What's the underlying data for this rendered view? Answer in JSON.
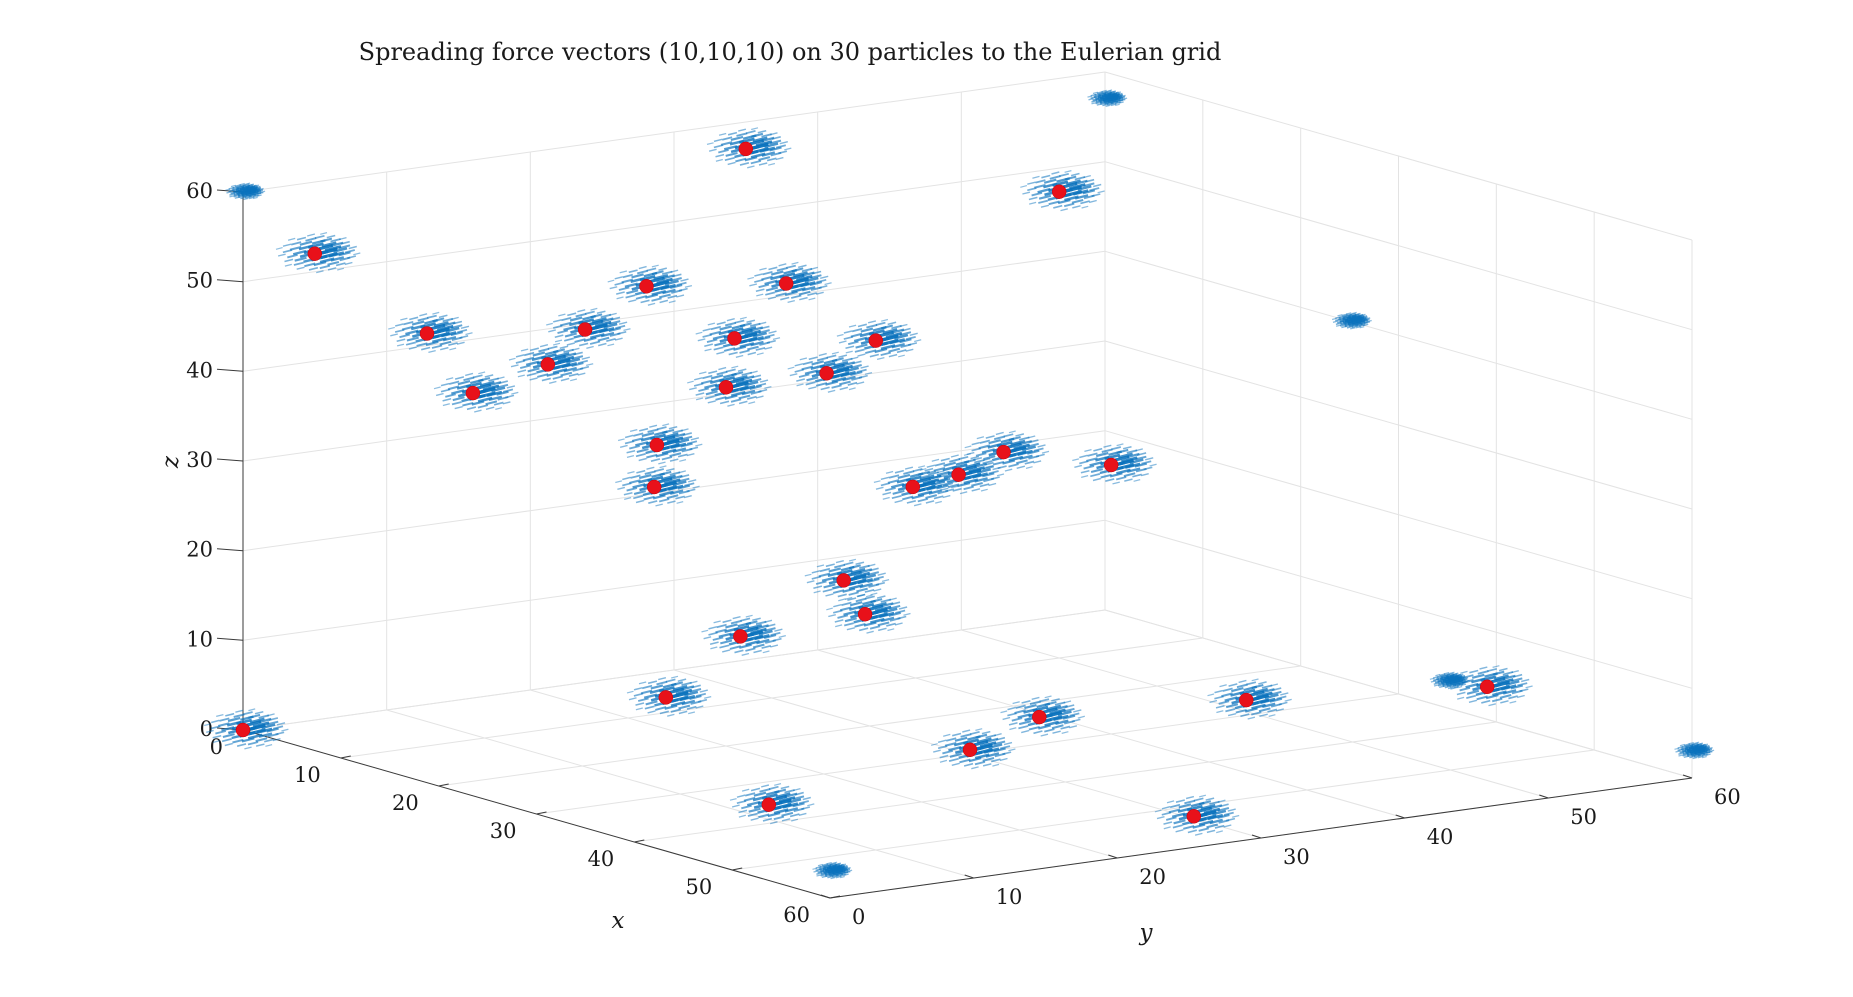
{
  "chart_data": {
    "type": "scatter",
    "title": "Spreading force vectors (10,10,10) on 30 particles to the Eulerian grid",
    "xlabel": "x",
    "ylabel": "y",
    "zlabel": "z",
    "xlim": [
      0,
      60
    ],
    "ylim": [
      0,
      60
    ],
    "zlim": [
      0,
      60
    ],
    "xticks": [
      "0",
      "10",
      "20",
      "30",
      "40",
      "50",
      "60"
    ],
    "yticks": [
      "0",
      "10",
      "20",
      "30",
      "40",
      "50",
      "60"
    ],
    "zticks": [
      "0",
      "10",
      "20",
      "30",
      "40",
      "50",
      "60"
    ],
    "grid": true,
    "colors": {
      "vectors": "#0072bd",
      "particles": "#e8111a"
    },
    "series": [
      {
        "kind": "particles",
        "points": [
          [
            0,
            0,
            0
          ],
          [
            42,
            8,
            3
          ],
          [
            30,
            35,
            3
          ],
          [
            35,
            46,
            4
          ],
          [
            59,
            26,
            3
          ],
          [
            42,
            22,
            6
          ],
          [
            42,
            58,
            5
          ],
          [
            30,
            9,
            11
          ],
          [
            20,
            21,
            12
          ],
          [
            10,
            35,
            12
          ],
          [
            21,
            29,
            13
          ],
          [
            10,
            43,
            22
          ],
          [
            20,
            15,
            30
          ],
          [
            10,
            22,
            30
          ],
          [
            3,
            42,
            35
          ],
          [
            19,
            40,
            28
          ],
          [
            30,
            40,
            30
          ],
          [
            20,
            33,
            26
          ],
          [
            0,
            16,
            34
          ],
          [
            10,
            6,
            46
          ],
          [
            15,
            11,
            43
          ],
          [
            10,
            17,
            44
          ],
          [
            15,
            24,
            43
          ],
          [
            6,
            24,
            46
          ],
          [
            10,
            31,
            46
          ],
          [
            0,
            5,
            52
          ],
          [
            0,
            35,
            57
          ],
          [
            10,
            50,
            52
          ],
          [
            20,
            20,
            40
          ],
          [
            20,
            27,
            40
          ]
        ]
      },
      {
        "kind": "periodic-images",
        "points": [
          [
            0,
            60,
            57
          ],
          [
            0,
            0,
            60
          ],
          [
            60,
            0,
            3
          ],
          [
            60,
            60,
            3
          ],
          [
            35,
            60,
            3
          ],
          [
            25,
            60,
            40
          ]
        ]
      }
    ]
  }
}
